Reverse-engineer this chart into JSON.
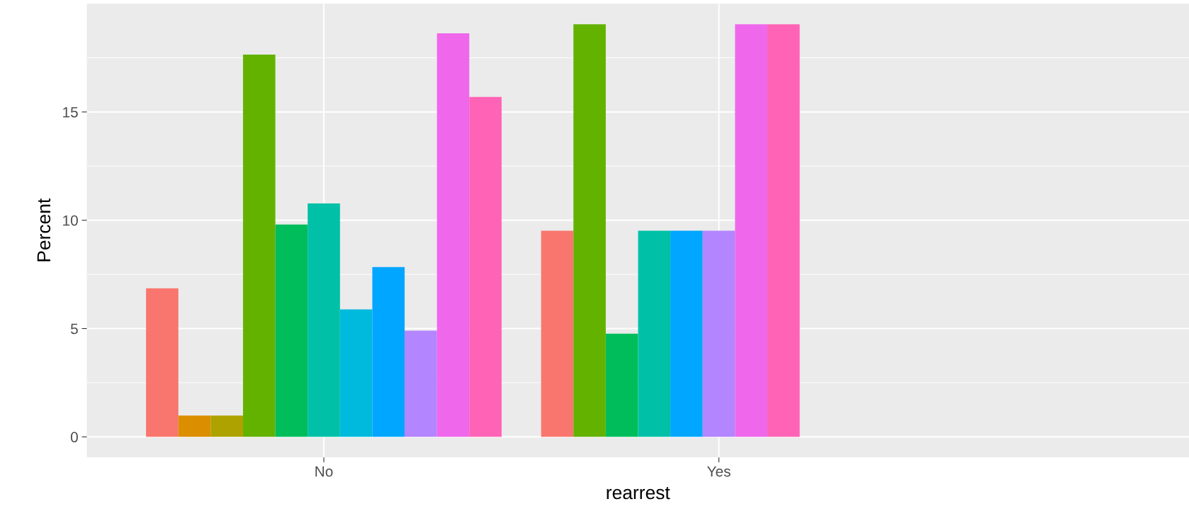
{
  "chart_data": {
    "type": "bar",
    "xlabel": "rearrest",
    "ylabel": "Percent",
    "categories": [
      "No",
      "Yes"
    ],
    "series": [
      {
        "color": "#f8766d",
        "values": [
          6.86,
          9.52
        ]
      },
      {
        "color": "#db8e00",
        "values": [
          0.98,
          null
        ]
      },
      {
        "color": "#aea200",
        "values": [
          0.98,
          null
        ]
      },
      {
        "color": "#64b200",
        "values": [
          17.65,
          19.05
        ]
      },
      {
        "color": "#00bd5c",
        "values": [
          9.8,
          4.76
        ]
      },
      {
        "color": "#00c1a7",
        "values": [
          10.78,
          9.52
        ]
      },
      {
        "color": "#00bade",
        "values": [
          5.88,
          null
        ]
      },
      {
        "color": "#00a6ff",
        "values": [
          7.84,
          9.52
        ]
      },
      {
        "color": "#b385ff",
        "values": [
          4.9,
          9.52
        ]
      },
      {
        "color": "#ef67eb",
        "values": [
          18.63,
          19.05
        ]
      },
      {
        "color": "#ff63b6",
        "values": [
          15.69,
          19.05
        ]
      }
    ],
    "ylim": [
      -0.95,
      20.0
    ],
    "yticks": [
      0,
      5,
      10,
      15
    ],
    "grid": true,
    "legend": false
  }
}
